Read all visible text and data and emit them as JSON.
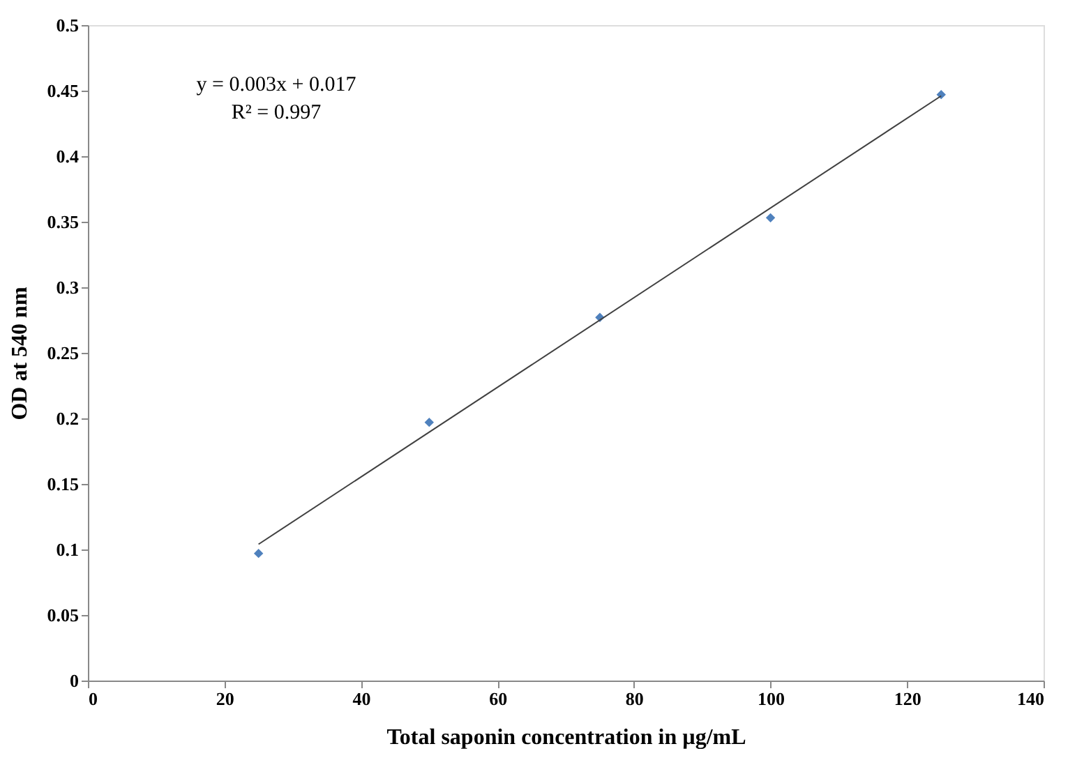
{
  "chart_data": {
    "type": "scatter",
    "xlabel": "Total saponin concentration in µg/mL",
    "ylabel": "OD at 540 nm",
    "annotations": [
      "y = 0.003x + 0.017",
      "R² = 0.997"
    ],
    "x": [
      25,
      50,
      75,
      100,
      125
    ],
    "series": [
      {
        "color": "#4f81bd",
        "marker": "diamond",
        "values": [
          0.097,
          0.197,
          0.277,
          0.353,
          0.447
        ]
      },
      {
        "type": "line",
        "color": "#404040",
        "marker": "none",
        "x": [
          25,
          125
        ],
        "values": [
          0.104,
          0.446
        ]
      }
    ],
    "xlim": [
      0,
      140
    ],
    "xticks": [
      0,
      20,
      40,
      60,
      80,
      100,
      120,
      140
    ],
    "ylim": [
      0,
      0.5
    ],
    "yticks": [
      0,
      0.05,
      0.1,
      0.15,
      0.2,
      0.25,
      0.3,
      0.35,
      0.4,
      0.45,
      0.5
    ],
    "grid": false
  }
}
